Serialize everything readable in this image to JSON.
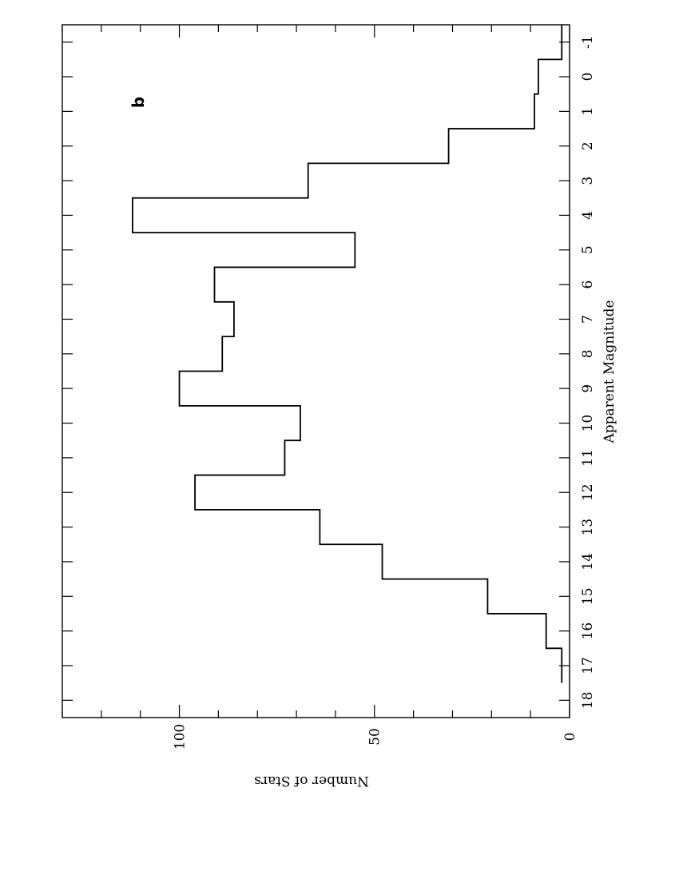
{
  "chart_data": {
    "type": "histogram",
    "orientation": "rotated-90",
    "xlabel": "Apparent Magnitude",
    "ylabel": "Number of Stars",
    "annotation": "b",
    "xlim": [
      -1.5,
      18.5
    ],
    "ylim": [
      0,
      130
    ],
    "x_ticks": [
      -1,
      0,
      1,
      2,
      3,
      4,
      5,
      6,
      7,
      8,
      9,
      10,
      11,
      12,
      13,
      14,
      15,
      16,
      17,
      18
    ],
    "x_tick_labels": [
      "-1",
      "0",
      "1",
      "2",
      "3",
      "4",
      "5",
      "6",
      "7",
      "8",
      "9",
      "10",
      "11",
      "12",
      "13",
      "14",
      "15",
      "16",
      "17",
      "18"
    ],
    "y_ticks": [
      0,
      50,
      100
    ],
    "y_tick_labels": [
      "0",
      "50",
      "100"
    ],
    "y_minor_step": 10,
    "bins": [
      {
        "x0": -1.5,
        "x1": -0.5,
        "count": 2
      },
      {
        "x0": -0.5,
        "x1": 0.5,
        "count": 8
      },
      {
        "x0": 0.5,
        "x1": 1.5,
        "count": 9
      },
      {
        "x0": 1.5,
        "x1": 2.5,
        "count": 31
      },
      {
        "x0": 2.5,
        "x1": 3.5,
        "count": 67
      },
      {
        "x0": 3.5,
        "x1": 4.5,
        "count": 112
      },
      {
        "x0": 4.5,
        "x1": 5.5,
        "count": 55
      },
      {
        "x0": 5.5,
        "x1": 6.5,
        "count": 91
      },
      {
        "x0": 6.5,
        "x1": 7.5,
        "count": 86
      },
      {
        "x0": 7.5,
        "x1": 8.5,
        "count": 89
      },
      {
        "x0": 8.5,
        "x1": 9.5,
        "count": 100
      },
      {
        "x0": 9.5,
        "x1": 10.5,
        "count": 69
      },
      {
        "x0": 10.5,
        "x1": 11.5,
        "count": 73
      },
      {
        "x0": 11.5,
        "x1": 12.5,
        "count": 96
      },
      {
        "x0": 12.5,
        "x1": 13.5,
        "count": 64
      },
      {
        "x0": 13.5,
        "x1": 14.5,
        "count": 48
      },
      {
        "x0": 14.5,
        "x1": 15.5,
        "count": 21
      },
      {
        "x0": 15.5,
        "x1": 16.5,
        "count": 6
      },
      {
        "x0": 16.5,
        "x1": 17.5,
        "count": 2
      }
    ]
  }
}
